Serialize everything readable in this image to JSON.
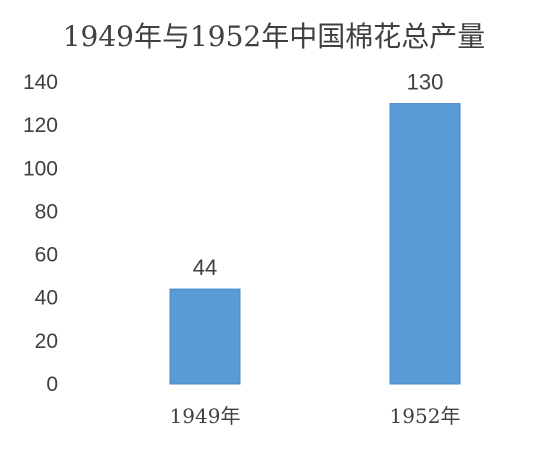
{
  "chart_data": {
    "type": "bar",
    "title": "1949年与1952年中国棉花总产量",
    "categories": [
      "1949年",
      "1952年"
    ],
    "values": [
      44,
      130
    ],
    "data_labels": [
      "44",
      "130"
    ],
    "ylim": [
      0,
      140
    ],
    "yticks": [
      "0",
      "20",
      "40",
      "60",
      "80",
      "100",
      "120",
      "140"
    ],
    "xlabel": "",
    "ylabel": "",
    "grid": false,
    "legend": "none",
    "bar_color": "#5B9BD5"
  }
}
